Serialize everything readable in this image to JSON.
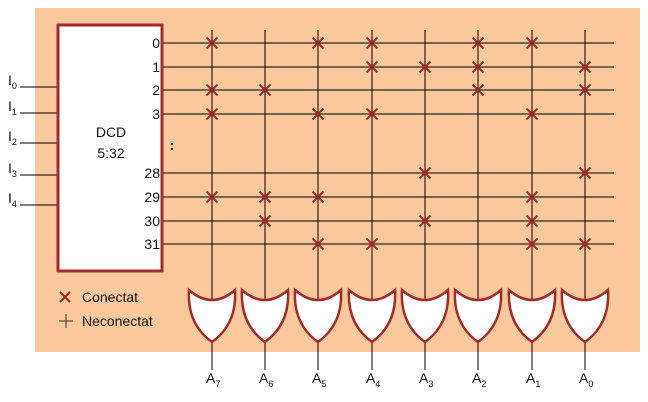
{
  "decoder": {
    "name": "DCD",
    "size": "5:32"
  },
  "inputs": [
    {
      "main": "I",
      "sub": "0"
    },
    {
      "main": "I",
      "sub": "1"
    },
    {
      "main": "I",
      "sub": "2"
    },
    {
      "main": "I",
      "sub": "3"
    },
    {
      "main": "I",
      "sub": "4"
    }
  ],
  "row_labels": [
    "0",
    "1",
    "2",
    "3",
    ":",
    "28",
    "29",
    "30",
    "31"
  ],
  "outputs": [
    {
      "main": "A",
      "sub": "7"
    },
    {
      "main": "A",
      "sub": "6"
    },
    {
      "main": "A",
      "sub": "5"
    },
    {
      "main": "A",
      "sub": "4"
    },
    {
      "main": "A",
      "sub": "3"
    },
    {
      "main": "A",
      "sub": "2"
    },
    {
      "main": "A",
      "sub": "1"
    },
    {
      "main": "A",
      "sub": "0"
    }
  ],
  "connections": {
    "0": [
      "A7",
      "A5",
      "A4",
      "A2",
      "A1"
    ],
    "1": [
      "A4",
      "A3",
      "A2",
      "A0"
    ],
    "2": [
      "A7",
      "A6",
      "A2",
      "A0"
    ],
    "3": [
      "A7",
      "A5",
      "A4",
      "A1"
    ],
    "28": [
      "A3",
      "A0"
    ],
    "29": [
      "A7",
      "A6",
      "A5",
      "A1"
    ],
    "30": [
      "A6",
      "A3",
      "A1"
    ],
    "31": [
      "A5",
      "A4",
      "A1",
      "A0"
    ]
  },
  "legend": {
    "connected": "Conectat",
    "not_connected": "Neconectat"
  },
  "colors": {
    "background": "#fbc99b",
    "accent": "#a52a2a",
    "line": "#000000",
    "gate_fill": "#ffffff"
  }
}
